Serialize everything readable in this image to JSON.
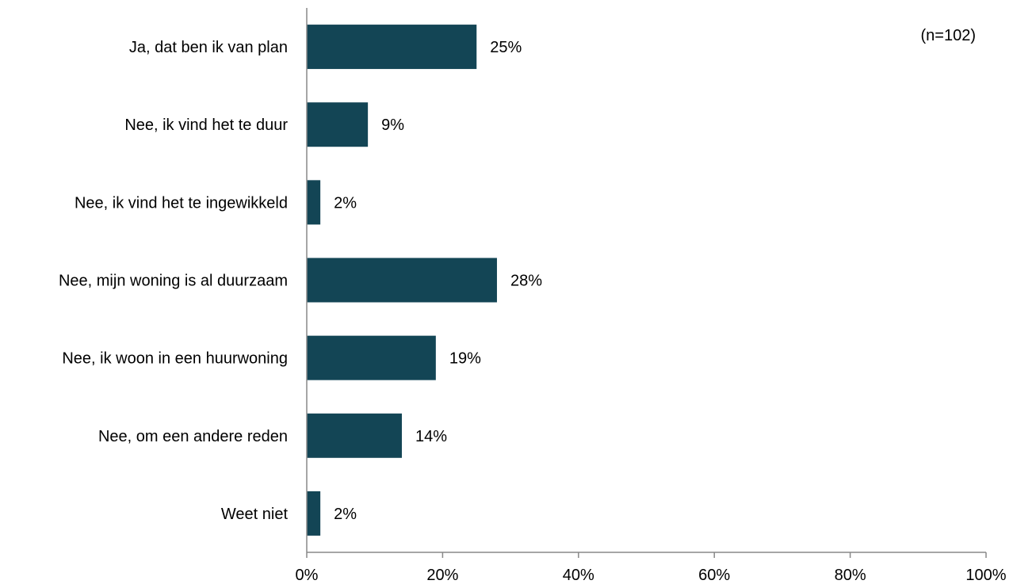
{
  "chart_data": {
    "type": "bar",
    "orientation": "horizontal",
    "categories": [
      "Ja, dat ben ik van plan",
      "Nee, ik vind het te duur",
      "Nee, ik vind het te ingewikkeld",
      "Nee, mijn woning is al duurzaam",
      "Nee, ik woon in een huurwoning",
      "Nee, om een andere reden",
      "Weet niet"
    ],
    "values": [
      25,
      9,
      2,
      28,
      19,
      14,
      2
    ],
    "data_labels": [
      "25%",
      "9%",
      "2%",
      "28%",
      "19%",
      "14%",
      "2%"
    ],
    "xlim": [
      0,
      100
    ],
    "x_ticks": [
      0,
      20,
      40,
      60,
      80,
      100
    ],
    "x_tick_labels": [
      "0%",
      "20%",
      "40%",
      "60%",
      "80%",
      "100%"
    ],
    "grid": false,
    "legend": "none",
    "annotation": "(n=102)",
    "bar_color": "#134555"
  }
}
